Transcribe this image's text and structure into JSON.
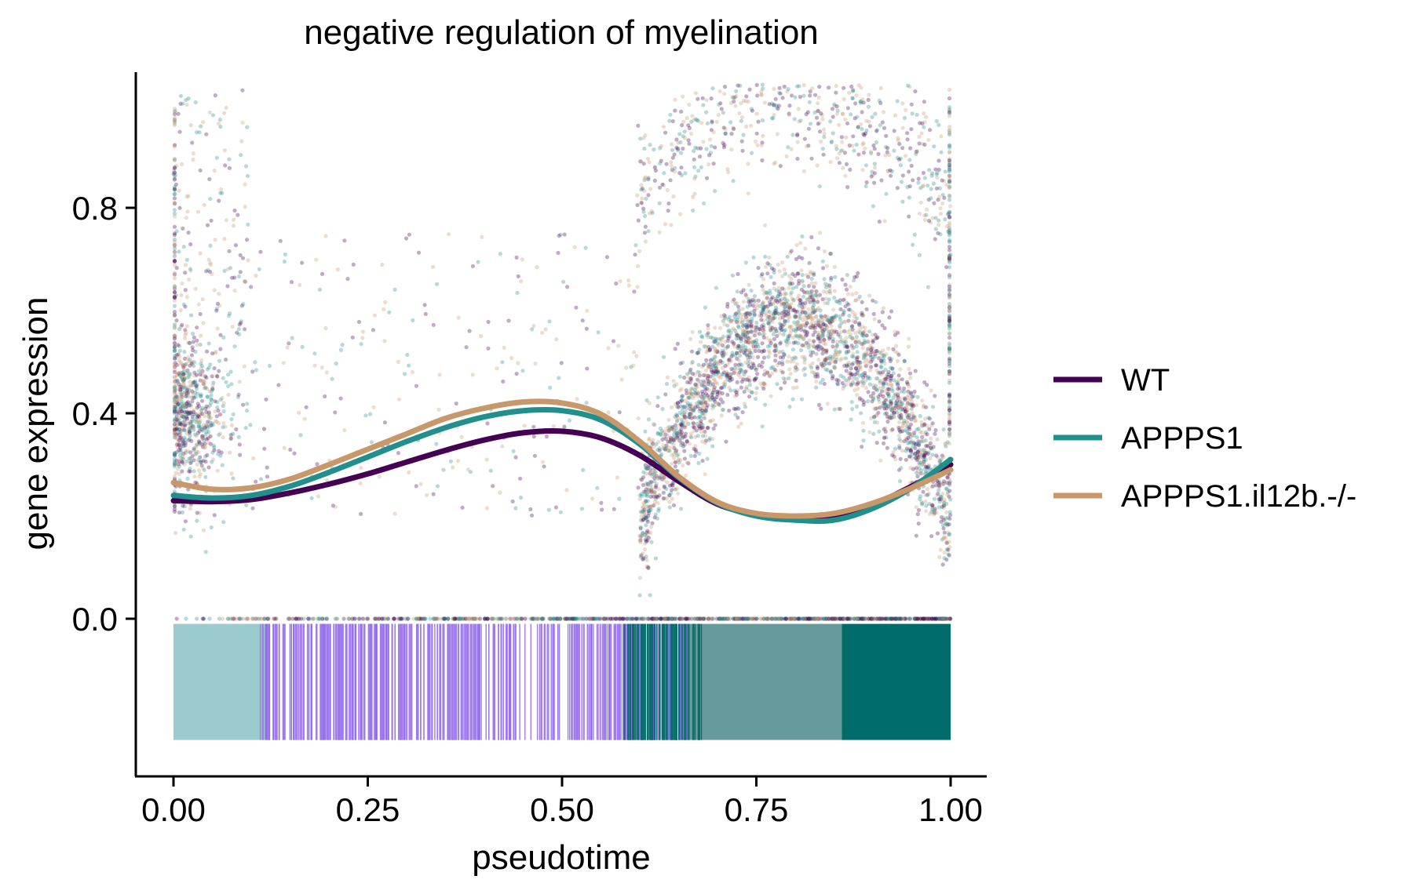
{
  "chart_data": {
    "type": "scatter",
    "title": "negative regulation of myelination",
    "xlabel": "pseudotime",
    "ylabel": "gene expression",
    "xlim": [
      -0.05,
      1.05
    ],
    "ylim": [
      -0.3,
      1.05
    ],
    "x_ticks": [
      0.0,
      0.25,
      0.5,
      0.75,
      1.0
    ],
    "x_tick_labels": [
      "0.00",
      "0.25",
      "0.50",
      "0.75",
      "1.00"
    ],
    "y_ticks": [
      0.0,
      0.4,
      0.8
    ],
    "y_tick_labels": [
      "0.0",
      "0.4",
      "0.8"
    ],
    "grid": false,
    "legend_position": "right",
    "series": [
      {
        "name": "WT",
        "color": "#440154",
        "x": [
          0.0,
          0.05,
          0.1,
          0.15,
          0.2,
          0.25,
          0.3,
          0.35,
          0.4,
          0.45,
          0.5,
          0.55,
          0.6,
          0.65,
          0.7,
          0.75,
          0.8,
          0.85,
          0.9,
          0.95,
          1.0
        ],
        "y": [
          0.23,
          0.228,
          0.232,
          0.245,
          0.262,
          0.282,
          0.305,
          0.328,
          0.348,
          0.362,
          0.365,
          0.352,
          0.318,
          0.268,
          0.223,
          0.203,
          0.196,
          0.2,
          0.222,
          0.258,
          0.3
        ]
      },
      {
        "name": "APPPS1",
        "color": "#21908C",
        "x": [
          0.0,
          0.05,
          0.1,
          0.15,
          0.2,
          0.25,
          0.3,
          0.35,
          0.4,
          0.45,
          0.5,
          0.55,
          0.6,
          0.65,
          0.7,
          0.75,
          0.8,
          0.85,
          0.9,
          0.95,
          1.0
        ],
        "y": [
          0.24,
          0.235,
          0.24,
          0.258,
          0.285,
          0.315,
          0.345,
          0.372,
          0.393,
          0.405,
          0.405,
          0.387,
          0.34,
          0.275,
          0.225,
          0.2,
          0.192,
          0.192,
          0.215,
          0.255,
          0.31
        ]
      },
      {
        "name": "APPPS1.il12b.-/-",
        "color": "#C8976A",
        "x": [
          0.0,
          0.05,
          0.1,
          0.15,
          0.2,
          0.25,
          0.3,
          0.35,
          0.4,
          0.45,
          0.5,
          0.55,
          0.6,
          0.65,
          0.7,
          0.75,
          0.8,
          0.85,
          0.9,
          0.95,
          1.0
        ],
        "y": [
          0.265,
          0.252,
          0.255,
          0.272,
          0.3,
          0.33,
          0.36,
          0.39,
          0.41,
          0.422,
          0.42,
          0.398,
          0.345,
          0.277,
          0.227,
          0.205,
          0.2,
          0.205,
          0.225,
          0.255,
          0.29
        ]
      }
    ]
  }
}
